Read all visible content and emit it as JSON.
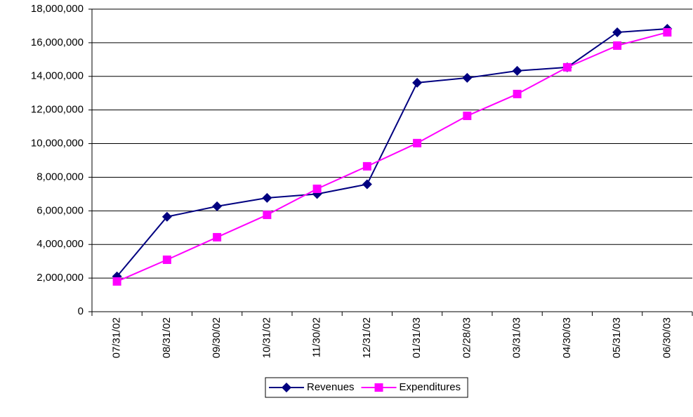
{
  "chart_data": {
    "type": "line",
    "categories": [
      "07/31/02",
      "08/31/02",
      "09/30/02",
      "10/31/02",
      "11/30/02",
      "12/31/02",
      "01/31/03",
      "02/28/03",
      "03/31/03",
      "04/30/03",
      "05/31/03",
      "06/30/03"
    ],
    "series": [
      {
        "name": "Revenues",
        "color": "#000080",
        "marker": "diamond",
        "values": [
          2100000,
          5650000,
          6270000,
          6770000,
          7000000,
          7580000,
          13620000,
          13910000,
          14330000,
          14540000,
          16620000,
          16830000
        ]
      },
      {
        "name": "Expenditures",
        "color": "#ff00ff",
        "marker": "square",
        "values": [
          1800000,
          3090000,
          4430000,
          5760000,
          7310000,
          8650000,
          10030000,
          11650000,
          12950000,
          14540000,
          15830000,
          16620000
        ]
      }
    ],
    "ylim": [
      0,
      18000000
    ],
    "yticks": [
      {
        "value": 0,
        "label": "0"
      },
      {
        "value": 2000000,
        "label": "2,000,000"
      },
      {
        "value": 4000000,
        "label": "4,000,000"
      },
      {
        "value": 6000000,
        "label": "6,000,000"
      },
      {
        "value": 8000000,
        "label": "8,000,000"
      },
      {
        "value": 10000000,
        "label": "10,000,000"
      },
      {
        "value": 12000000,
        "label": "12,000,000"
      },
      {
        "value": 14000000,
        "label": "14,000,000"
      },
      {
        "value": 16000000,
        "label": "16,000,000"
      },
      {
        "value": 18000000,
        "label": "18,000,000"
      }
    ],
    "grid": true,
    "legend": "bottom"
  }
}
